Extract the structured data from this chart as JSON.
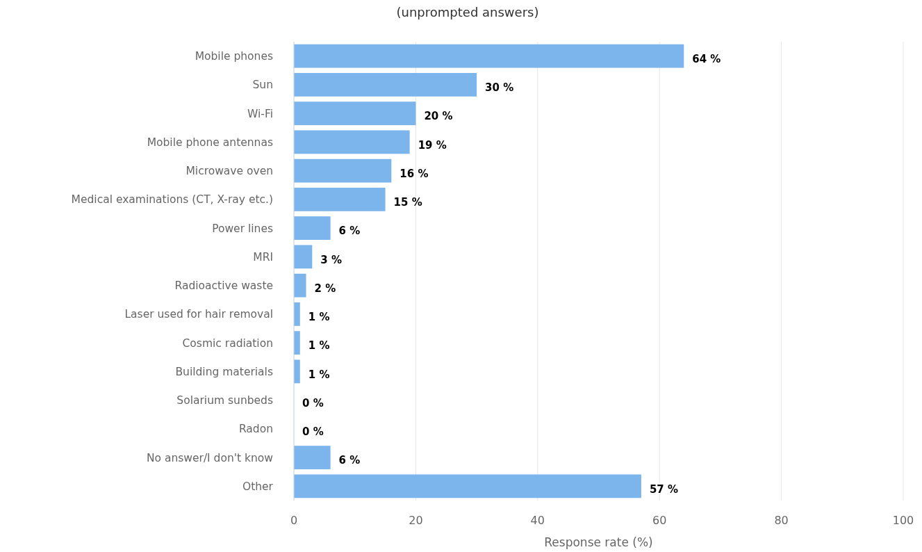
{
  "chart_data": {
    "type": "bar",
    "orientation": "horizontal",
    "title": "(unprompted answers)",
    "categories": [
      "Mobile phones",
      "Sun",
      "Wi-Fi",
      "Mobile phone antennas",
      "Microwave oven",
      "Medical examinations (CT, X-ray etc.)",
      "Power lines",
      "MRI",
      "Radioactive waste",
      "Laser used for hair removal",
      "Cosmic radiation",
      "Building materials",
      "Solarium sunbeds",
      "Radon",
      "No answer/I don't know",
      "Other"
    ],
    "values": [
      64,
      30,
      20,
      19,
      16,
      15,
      6,
      3,
      2,
      1,
      1,
      1,
      0,
      0,
      6,
      57
    ],
    "value_labels": [
      "64 %",
      "30 %",
      "20 %",
      "19 %",
      "16 %",
      "15 %",
      "6 %",
      "3 %",
      "2 %",
      "1 %",
      "1 %",
      "1 %",
      "0 %",
      "0 %",
      "6 %",
      "57 %"
    ],
    "color": "#7cb5ec",
    "xlim": [
      0,
      100
    ],
    "xticks": [
      0,
      20,
      40,
      60,
      80,
      100
    ],
    "xlabel": "Response rate (%)",
    "grid": "x"
  }
}
